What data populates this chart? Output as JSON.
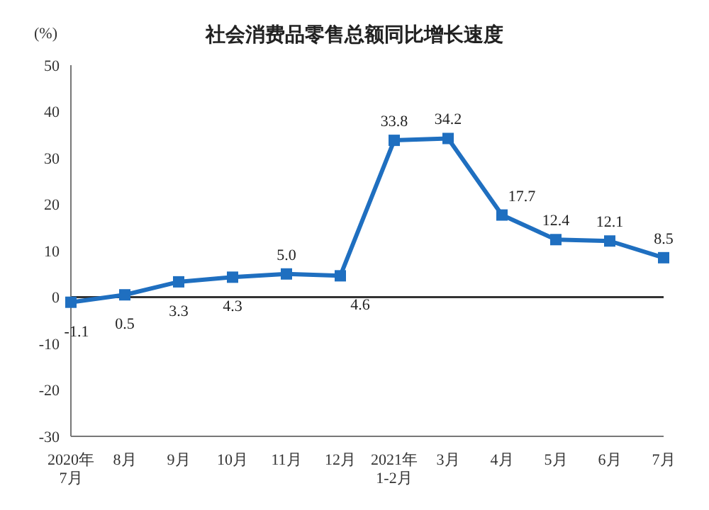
{
  "chart_data": {
    "type": "line",
    "title": "社会消费品零售总额同比增长速度",
    "ylabel": "(%)",
    "categories": [
      "2020年\n7月",
      "8月",
      "9月",
      "10月",
      "11月",
      "12月",
      "2021年\n1-2月",
      "3月",
      "4月",
      "5月",
      "6月",
      "7月"
    ],
    "series": [
      {
        "color": "#1f6fc0",
        "values": [
          -1.1,
          0.5,
          3.3,
          4.3,
          5.0,
          4.6,
          33.8,
          34.2,
          17.7,
          12.4,
          12.1,
          8.5
        ],
        "value_labels": [
          "-1.1",
          "0.5",
          "3.3",
          "4.3",
          "5.0",
          "4.6",
          "33.8",
          "34.2",
          "17.7",
          "12.4",
          "12.1",
          "8.5"
        ]
      }
    ],
    "ylim": [
      -30,
      50
    ],
    "yticks": [
      -30,
      -20,
      -10,
      0,
      10,
      20,
      30,
      40,
      50
    ],
    "ref_lines": [
      {
        "axis": "y",
        "value": 0,
        "color": "#333333"
      }
    ],
    "marker": "square",
    "line_style": "solid",
    "grid": false,
    "legend": false
  }
}
